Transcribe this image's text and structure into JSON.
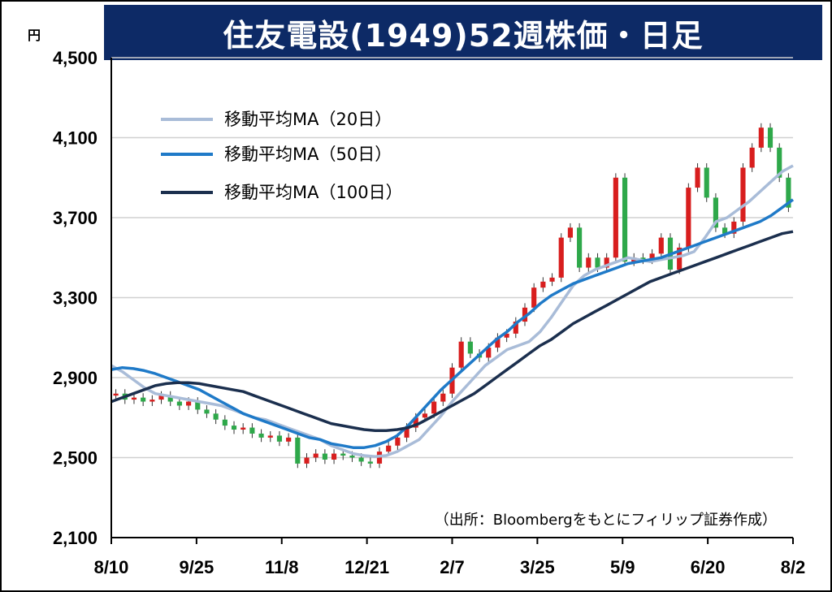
{
  "chart_data": {
    "type": "candlestick",
    "title": "住友電設(1949)52週株価・日足",
    "y_unit": "円",
    "ylim": [
      2100,
      4500
    ],
    "y_ticks": [
      "2,100",
      "2,500",
      "2,900",
      "3,300",
      "3,700",
      "4,100",
      "4,500"
    ],
    "y_tick_values": [
      2100,
      2500,
      2900,
      3300,
      3700,
      4100,
      4500
    ],
    "x_ticks": [
      "8/10",
      "9/25",
      "11/8",
      "12/21",
      "2/7",
      "3/25",
      "5/9",
      "6/20",
      "8/2"
    ],
    "grid": true,
    "legend_position": "top-left",
    "source": "（出所：Bloombergをもとにフィリップ証券作成）",
    "colors": {
      "up": "#d81e1e",
      "down": "#2ea84a",
      "ma20": "#a9bcd8",
      "ma50": "#1f7ac8",
      "ma100": "#1b2f4e",
      "title_bg": "#0d2a66",
      "grid": "#d0d0d0"
    },
    "series": [
      {
        "name": "移動平均MA（20日）",
        "color": "#a9bcd8",
        "values": [
          2960,
          2930,
          2890,
          2850,
          2820,
          2810,
          2800,
          2790,
          2780,
          2770,
          2760,
          2740,
          2720,
          2700,
          2690,
          2670,
          2650,
          2630,
          2610,
          2590,
          2560,
          2540,
          2520,
          2510,
          2505,
          2510,
          2530,
          2560,
          2590,
          2650,
          2710,
          2780,
          2840,
          2900,
          2960,
          3000,
          3040,
          3060,
          3080,
          3130,
          3200,
          3280,
          3360,
          3410,
          3440,
          3460,
          3480,
          3500,
          3490,
          3480,
          3490,
          3500,
          3510,
          3530,
          3600,
          3680,
          3700,
          3740,
          3780,
          3830,
          3880,
          3930,
          3960
        ]
      },
      {
        "name": "移動平均MA（50日）",
        "color": "#1f7ac8",
        "values": [
          2940,
          2950,
          2945,
          2935,
          2920,
          2900,
          2880,
          2860,
          2840,
          2810,
          2780,
          2750,
          2720,
          2700,
          2680,
          2660,
          2640,
          2620,
          2600,
          2590,
          2570,
          2560,
          2550,
          2550,
          2560,
          2580,
          2610,
          2660,
          2720,
          2780,
          2840,
          2890,
          2940,
          2990,
          3040,
          3090,
          3130,
          3180,
          3220,
          3270,
          3310,
          3340,
          3370,
          3390,
          3410,
          3430,
          3450,
          3470,
          3480,
          3490,
          3500,
          3520,
          3540,
          3560,
          3580,
          3600,
          3620,
          3640,
          3660,
          3680,
          3710,
          3750,
          3790
        ]
      },
      {
        "name": "移動平均MA（100日）",
        "color": "#1b2f4e",
        "values": [
          2780,
          2800,
          2820,
          2840,
          2860,
          2870,
          2875,
          2875,
          2870,
          2860,
          2850,
          2840,
          2830,
          2810,
          2790,
          2770,
          2750,
          2730,
          2710,
          2690,
          2670,
          2660,
          2650,
          2640,
          2635,
          2635,
          2640,
          2650,
          2670,
          2700,
          2730,
          2760,
          2790,
          2820,
          2860,
          2900,
          2940,
          2980,
          3020,
          3060,
          3090,
          3130,
          3170,
          3200,
          3230,
          3260,
          3290,
          3320,
          3350,
          3380,
          3400,
          3420,
          3440,
          3460,
          3480,
          3500,
          3520,
          3540,
          3560,
          3580,
          3600,
          3620,
          3630
        ]
      }
    ],
    "candles_close": [
      2820,
      2790,
      2800,
      2780,
      2790,
      2810,
      2780,
      2760,
      2780,
      2740,
      2720,
      2690,
      2660,
      2640,
      2650,
      2620,
      2600,
      2610,
      2580,
      2600,
      2470,
      2500,
      2520,
      2490,
      2520,
      2510,
      2500,
      2480,
      2470,
      2530,
      2560,
      2600,
      2650,
      2700,
      2720,
      2780,
      2820,
      2950,
      3080,
      3020,
      3000,
      3050,
      3100,
      3120,
      3180,
      3250,
      3350,
      3380,
      3400,
      3600,
      3650,
      3450,
      3500,
      3450,
      3500,
      3900,
      3480,
      3500,
      3490,
      3520,
      3600,
      3440,
      3550,
      3850,
      3950,
      3800,
      3650,
      3620,
      3680,
      3950,
      4050,
      4150,
      4050,
      3900,
      3750
    ]
  },
  "legend": {
    "ma20": "移動平均MA（20日）",
    "ma50": "移動平均MA（50日）",
    "ma100": "移動平均MA（100日）"
  }
}
